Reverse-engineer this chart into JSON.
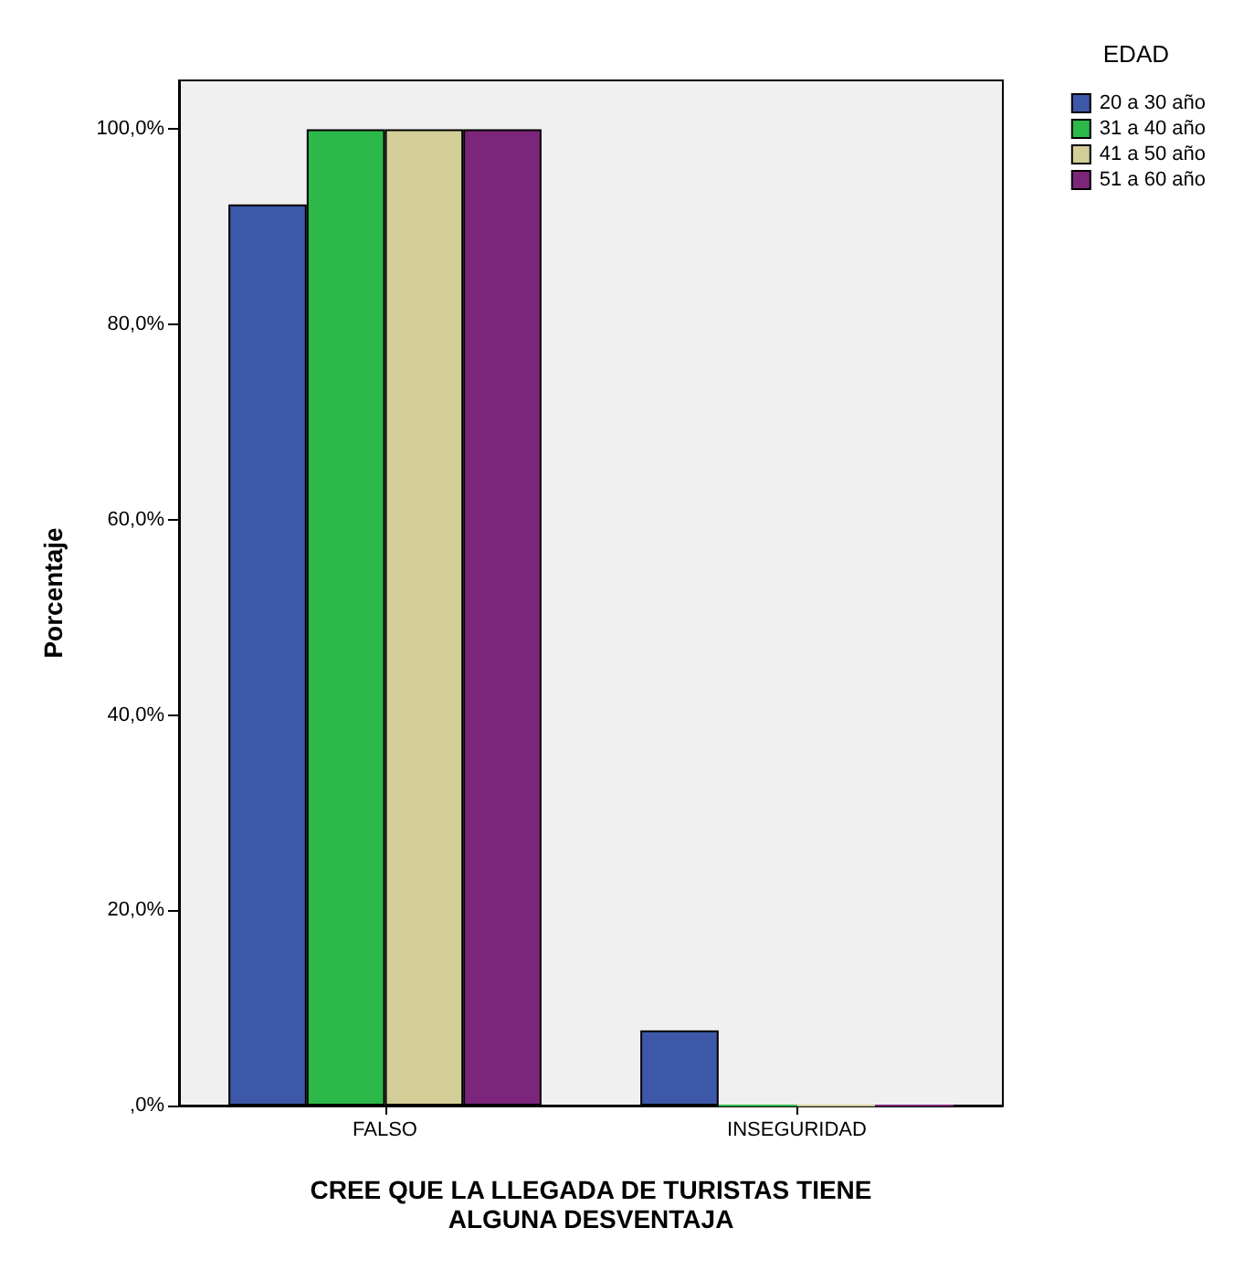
{
  "chart_data": {
    "type": "bar",
    "xlabel": "CREE QUE LA LLEGADA DE TURISTAS TIENE\nALGUNA DESVENTAJA",
    "ylabel": "Porcentaje",
    "legend_title": "EDAD",
    "categories": [
      "FALSO",
      "INSEGURIDAD"
    ],
    "series": [
      {
        "name": "20 a 30 año",
        "color": "#3d58a8",
        "values": [
          92.3,
          7.7
        ]
      },
      {
        "name": "31 a 40 año",
        "color": "#2db84a",
        "values": [
          100,
          0
        ]
      },
      {
        "name": "41 a 50 año",
        "color": "#d3ce97",
        "values": [
          100,
          0
        ]
      },
      {
        "name": "51 a 60 año",
        "color": "#7b267a",
        "values": [
          100,
          0
        ]
      }
    ],
    "ylim": [
      0,
      105
    ],
    "yticks": [
      {
        "value": 0,
        "label": ",0%"
      },
      {
        "value": 20,
        "label": "20,0%"
      },
      {
        "value": 40,
        "label": "40,0%"
      },
      {
        "value": 60,
        "label": "60,0%"
      },
      {
        "value": 80,
        "label": "80,0%"
      },
      {
        "value": 100,
        "label": "100,0%"
      }
    ],
    "grid": false,
    "legend": "top right"
  }
}
